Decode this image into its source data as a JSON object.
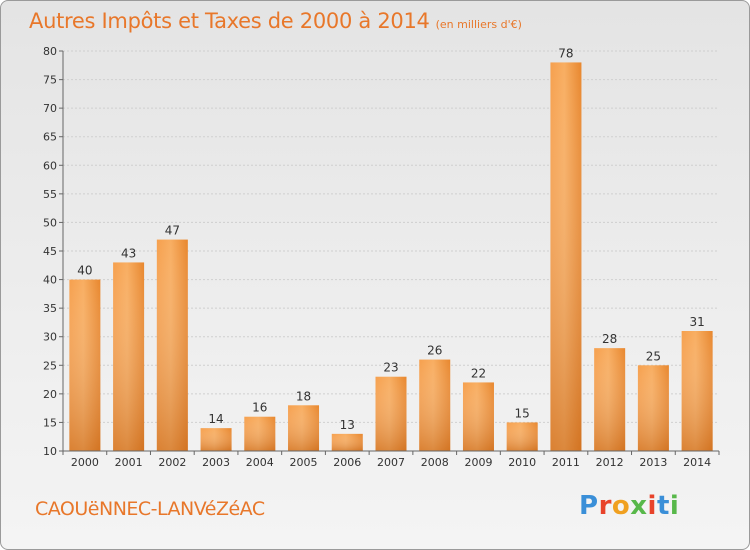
{
  "header": {
    "title": "Autres Impôts et Taxes de 2000 à 2014",
    "unit": "(en milliers d'€)"
  },
  "footer": {
    "commune": "CAOUëNNEC-LANVéZéAC",
    "logo": [
      "P",
      "r",
      "o",
      "x",
      "i",
      "t",
      "i"
    ]
  },
  "colors": {
    "bar_light": "#f8aa5a",
    "bar_dark": "#d97522",
    "accent": "#e8772a",
    "grid": "#c8c8c8"
  },
  "chart_data": {
    "type": "bar",
    "title": "Autres Impôts et Taxes de 2000 à 2014",
    "subtitle": "(en milliers d'€)",
    "categories": [
      "2000",
      "2001",
      "2002",
      "2003",
      "2004",
      "2005",
      "2006",
      "2007",
      "2008",
      "2009",
      "2010",
      "2011",
      "2012",
      "2013",
      "2014"
    ],
    "values": [
      40,
      43,
      47,
      14,
      16,
      18,
      13,
      23,
      26,
      22,
      15,
      78,
      28,
      25,
      31
    ],
    "ylim": [
      10,
      80
    ],
    "yticks": [
      10,
      15,
      20,
      25,
      30,
      35,
      40,
      45,
      50,
      55,
      60,
      65,
      70,
      75,
      80
    ],
    "grid": true,
    "data_labels": true
  }
}
